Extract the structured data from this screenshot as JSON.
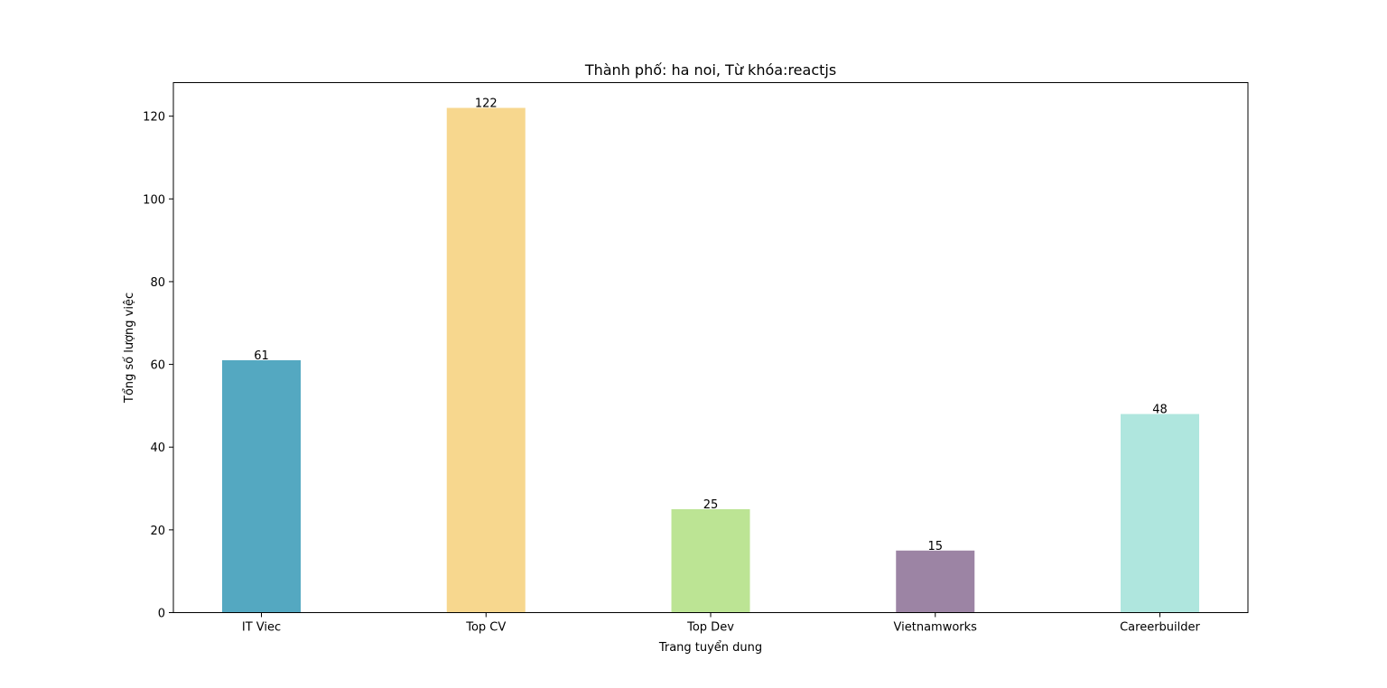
{
  "chart_data": {
    "type": "bar",
    "title": "Thành phố: ha noi, Từ khóa:reactjs",
    "xlabel": "Trang tuyển dung",
    "ylabel": "Tổng số lượng việc",
    "categories": [
      "IT Viec",
      "Top CV",
      "Top Dev",
      "Vietnamworks",
      "Careerbuilder"
    ],
    "values": [
      61,
      122,
      25,
      15,
      48
    ],
    "value_labels": [
      "61",
      "122",
      "25",
      "15",
      "48"
    ],
    "colors": [
      "#54a8c1",
      "#f7d78e",
      "#bce494",
      "#9c84a4",
      "#afe6de"
    ],
    "ylim": [
      0,
      128
    ],
    "yticks": [
      0,
      20,
      40,
      60,
      80,
      100,
      120
    ],
    "ytick_labels": [
      "0",
      "20",
      "40",
      "60",
      "80",
      "100",
      "120"
    ],
    "grid": false,
    "legend": "none"
  }
}
